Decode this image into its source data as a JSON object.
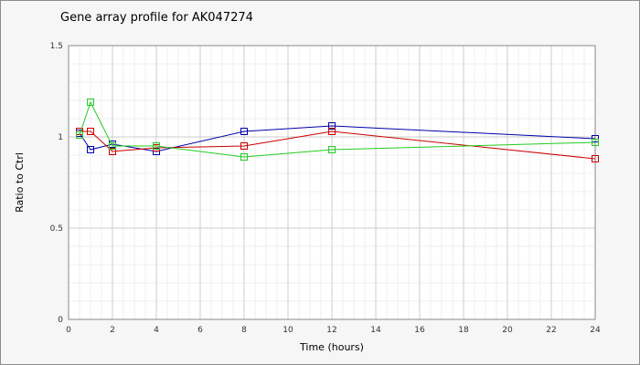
{
  "chart_data": {
    "type": "line",
    "title": "Gene array profile for AK047274",
    "xlabel": "Time (hours)",
    "ylabel": "Ratio to Ctrl",
    "xlim": [
      0,
      24
    ],
    "ylim": [
      0,
      1.5
    ],
    "x_ticks": [
      "0",
      "2",
      "4",
      "6",
      "8",
      "10",
      "12",
      "14",
      "16",
      "18",
      "20",
      "22",
      "24"
    ],
    "y_ticks": [
      "0",
      "0.5",
      "1",
      "1.5"
    ],
    "grid": true,
    "legend": "none",
    "marker": "open-square",
    "series": [
      {
        "color": "#0000aa",
        "x": [
          0.5,
          1,
          2,
          4,
          8,
          12,
          24
        ],
        "y": [
          1.02,
          0.93,
          0.96,
          0.92,
          1.03,
          1.06,
          0.99
        ]
      },
      {
        "color": "#cc0000",
        "x": [
          0.5,
          1,
          2,
          4,
          8,
          12,
          24
        ],
        "y": [
          1.03,
          1.03,
          0.92,
          0.94,
          0.95,
          1.03,
          0.88
        ]
      },
      {
        "color": "#22cc22",
        "x": [
          0.5,
          1,
          2,
          4,
          8,
          12,
          24
        ],
        "y": [
          1.01,
          1.19,
          0.95,
          0.95,
          0.89,
          0.93,
          0.97
        ]
      }
    ]
  }
}
